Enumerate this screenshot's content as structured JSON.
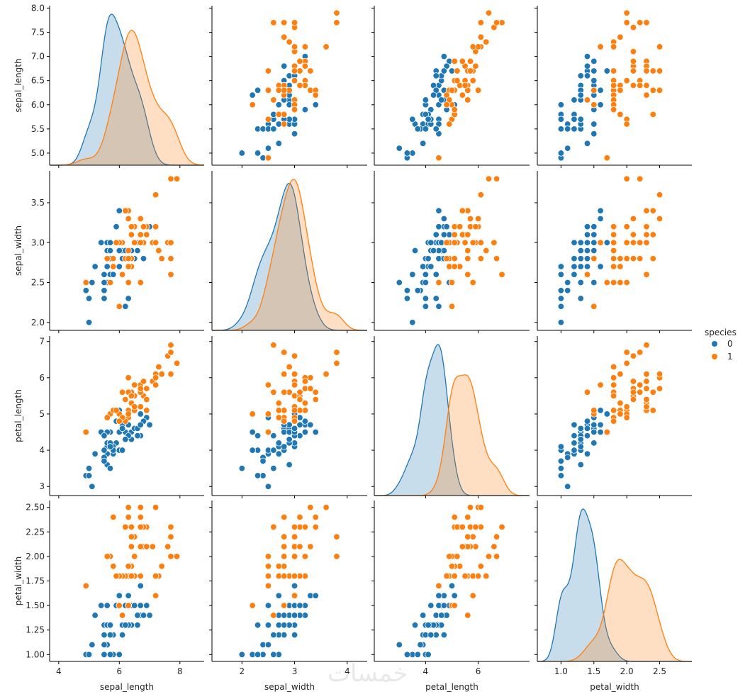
{
  "chart_data": {
    "type": "scatter",
    "kind": "pairplot",
    "diag_kind": "kde",
    "variables": [
      "sepal_length",
      "sepal_width",
      "petal_length",
      "petal_width"
    ],
    "hue": "species",
    "legend": {
      "title": "species",
      "placement": "right",
      "entries": [
        {
          "label": "0",
          "color": "#1f77b4"
        },
        {
          "label": "1",
          "color": "#ff7f0e"
        }
      ]
    },
    "axes": {
      "sepal_length": {
        "range": [
          3.7,
          8.8
        ],
        "ticks": [
          4,
          6,
          8
        ],
        "tick_labels": [
          "4",
          "6",
          "8"
        ],
        "row_range": [
          4.75,
          8.05
        ],
        "row_ticks": [
          5.0,
          5.5,
          6.0,
          6.5,
          7.0,
          7.5,
          8.0
        ],
        "row_tick_labels": [
          "5.0",
          "5.5",
          "6.0",
          "6.5",
          "7.0",
          "7.5",
          "8.0"
        ]
      },
      "sepal_width": {
        "range": [
          1.43,
          4.38
        ],
        "ticks": [
          2,
          3,
          4
        ],
        "tick_labels": [
          "2",
          "3",
          "4"
        ],
        "row_range": [
          1.9,
          3.9
        ],
        "row_ticks": [
          2.0,
          2.5,
          3.0,
          3.5
        ],
        "row_tick_labels": [
          "2.0",
          "2.5",
          "3.0",
          "3.5"
        ]
      },
      "petal_length": {
        "range": [
          2.05,
          7.95
        ],
        "ticks": [
          4,
          6
        ],
        "tick_labels": [
          "4",
          "6"
        ],
        "row_range": [
          2.75,
          7.15
        ],
        "row_ticks": [
          3,
          4,
          5,
          6,
          7
        ],
        "row_tick_labels": [
          "3",
          "4",
          "5",
          "6",
          "7"
        ]
      },
      "petal_width": {
        "range": [
          0.64,
          2.99
        ],
        "ticks": [
          1.0,
          1.5,
          2.0,
          2.5
        ],
        "tick_labels": [
          "1.0",
          "1.5",
          "2.0",
          "2.5"
        ],
        "row_range": [
          0.93,
          2.57
        ],
        "row_ticks": [
          1.0,
          1.25,
          1.5,
          1.75,
          2.0,
          2.25,
          2.5
        ],
        "row_tick_labels": [
          "1.00",
          "1.25",
          "1.50",
          "1.75",
          "2.00",
          "2.25",
          "2.50"
        ]
      }
    },
    "series": [
      {
        "name": "0",
        "color": "#1f77b4",
        "points": [
          [
            7.0,
            3.2,
            4.7,
            1.4
          ],
          [
            6.4,
            3.2,
            4.5,
            1.5
          ],
          [
            6.9,
            3.1,
            4.9,
            1.5
          ],
          [
            5.5,
            2.3,
            4.0,
            1.3
          ],
          [
            6.5,
            2.8,
            4.6,
            1.5
          ],
          [
            5.7,
            2.8,
            4.5,
            1.3
          ],
          [
            6.3,
            3.3,
            4.7,
            1.6
          ],
          [
            4.9,
            2.4,
            3.3,
            1.0
          ],
          [
            6.6,
            2.9,
            4.6,
            1.3
          ],
          [
            5.2,
            2.7,
            3.9,
            1.4
          ],
          [
            5.0,
            2.0,
            3.5,
            1.0
          ],
          [
            5.9,
            3.0,
            4.2,
            1.5
          ],
          [
            6.0,
            2.2,
            4.0,
            1.0
          ],
          [
            6.1,
            2.9,
            4.7,
            1.4
          ],
          [
            5.6,
            2.9,
            3.6,
            1.3
          ],
          [
            6.7,
            3.1,
            4.4,
            1.4
          ],
          [
            5.6,
            3.0,
            4.5,
            1.5
          ],
          [
            5.8,
            2.7,
            4.1,
            1.0
          ],
          [
            6.2,
            2.2,
            4.5,
            1.5
          ],
          [
            5.6,
            2.5,
            3.9,
            1.1
          ],
          [
            5.9,
            3.2,
            4.8,
            1.8
          ],
          [
            6.1,
            2.8,
            4.0,
            1.3
          ],
          [
            6.3,
            2.5,
            4.9,
            1.5
          ],
          [
            6.1,
            2.8,
            4.7,
            1.2
          ],
          [
            6.4,
            2.9,
            4.3,
            1.3
          ],
          [
            6.6,
            3.0,
            4.4,
            1.4
          ],
          [
            6.8,
            2.8,
            4.8,
            1.4
          ],
          [
            6.7,
            3.0,
            5.0,
            1.7
          ],
          [
            6.0,
            2.9,
            4.5,
            1.5
          ],
          [
            5.7,
            2.6,
            3.5,
            1.0
          ],
          [
            5.5,
            2.4,
            3.8,
            1.1
          ],
          [
            5.5,
            2.4,
            3.7,
            1.0
          ],
          [
            5.8,
            2.7,
            3.9,
            1.2
          ],
          [
            6.0,
            2.7,
            5.1,
            1.6
          ],
          [
            5.4,
            3.0,
            4.5,
            1.5
          ],
          [
            6.0,
            3.4,
            4.5,
            1.6
          ],
          [
            6.7,
            3.1,
            4.7,
            1.5
          ],
          [
            6.3,
            2.3,
            4.4,
            1.3
          ],
          [
            5.6,
            3.0,
            4.1,
            1.3
          ],
          [
            5.5,
            2.5,
            4.0,
            1.3
          ],
          [
            5.5,
            2.6,
            4.4,
            1.2
          ],
          [
            6.1,
            3.0,
            4.6,
            1.4
          ],
          [
            5.8,
            2.6,
            4.0,
            1.2
          ],
          [
            5.0,
            2.3,
            3.3,
            1.0
          ],
          [
            5.6,
            2.7,
            4.2,
            1.3
          ],
          [
            5.7,
            3.0,
            4.2,
            1.2
          ],
          [
            5.7,
            2.9,
            4.2,
            1.3
          ],
          [
            6.2,
            2.9,
            4.3,
            1.3
          ],
          [
            5.1,
            2.5,
            3.0,
            1.1
          ],
          [
            5.7,
            2.8,
            4.1,
            1.3
          ]
        ]
      },
      {
        "name": "1",
        "color": "#ff7f0e",
        "points": [
          [
            6.3,
            3.3,
            6.0,
            2.5
          ],
          [
            5.8,
            2.7,
            5.1,
            1.9
          ],
          [
            7.1,
            3.0,
            5.9,
            2.1
          ],
          [
            6.3,
            2.9,
            5.6,
            1.8
          ],
          [
            6.5,
            3.0,
            5.8,
            2.2
          ],
          [
            7.6,
            3.0,
            6.6,
            2.1
          ],
          [
            4.9,
            2.5,
            4.5,
            1.7
          ],
          [
            7.3,
            2.9,
            6.3,
            1.8
          ],
          [
            6.7,
            2.5,
            5.8,
            1.8
          ],
          [
            7.2,
            3.6,
            6.1,
            2.5
          ],
          [
            6.5,
            3.2,
            5.1,
            2.0
          ],
          [
            6.4,
            2.7,
            5.3,
            1.9
          ],
          [
            6.8,
            3.0,
            5.5,
            2.1
          ],
          [
            5.7,
            2.5,
            5.0,
            2.0
          ],
          [
            5.8,
            2.8,
            5.1,
            2.4
          ],
          [
            6.4,
            3.2,
            5.3,
            2.3
          ],
          [
            6.5,
            3.0,
            5.5,
            1.8
          ],
          [
            7.7,
            3.8,
            6.7,
            2.2
          ],
          [
            7.7,
            2.6,
            6.9,
            2.3
          ],
          [
            6.0,
            2.2,
            5.0,
            1.5
          ],
          [
            6.9,
            3.2,
            5.7,
            2.3
          ],
          [
            5.6,
            2.8,
            4.9,
            2.0
          ],
          [
            7.7,
            2.8,
            6.7,
            2.0
          ],
          [
            6.3,
            2.7,
            4.9,
            1.8
          ],
          [
            6.7,
            3.3,
            5.7,
            2.1
          ],
          [
            7.2,
            3.2,
            6.0,
            1.8
          ],
          [
            6.2,
            2.8,
            4.8,
            1.8
          ],
          [
            6.1,
            3.0,
            4.9,
            1.8
          ],
          [
            6.4,
            2.8,
            5.6,
            2.1
          ],
          [
            7.2,
            3.0,
            5.8,
            1.6
          ],
          [
            7.4,
            2.8,
            6.1,
            1.9
          ],
          [
            7.9,
            3.8,
            6.4,
            2.0
          ],
          [
            6.4,
            2.8,
            5.6,
            2.2
          ],
          [
            6.3,
            2.8,
            5.1,
            1.5
          ],
          [
            6.1,
            2.6,
            5.6,
            1.4
          ],
          [
            7.7,
            3.0,
            6.1,
            2.3
          ],
          [
            6.3,
            3.4,
            5.6,
            2.4
          ],
          [
            6.4,
            3.1,
            5.5,
            1.8
          ],
          [
            6.0,
            3.0,
            4.8,
            1.8
          ],
          [
            6.9,
            3.1,
            5.4,
            2.1
          ],
          [
            6.7,
            3.1,
            5.6,
            2.4
          ],
          [
            6.9,
            3.1,
            5.1,
            2.3
          ],
          [
            5.8,
            2.7,
            5.1,
            1.9
          ],
          [
            6.8,
            3.2,
            5.9,
            2.3
          ],
          [
            6.7,
            3.3,
            5.7,
            2.5
          ],
          [
            6.7,
            3.0,
            5.2,
            2.3
          ],
          [
            6.3,
            2.5,
            5.0,
            1.9
          ],
          [
            6.5,
            3.0,
            5.2,
            2.0
          ],
          [
            6.2,
            3.4,
            5.4,
            2.3
          ],
          [
            5.9,
            3.0,
            5.1,
            1.8
          ]
        ]
      }
    ]
  },
  "watermark": "خمسات"
}
